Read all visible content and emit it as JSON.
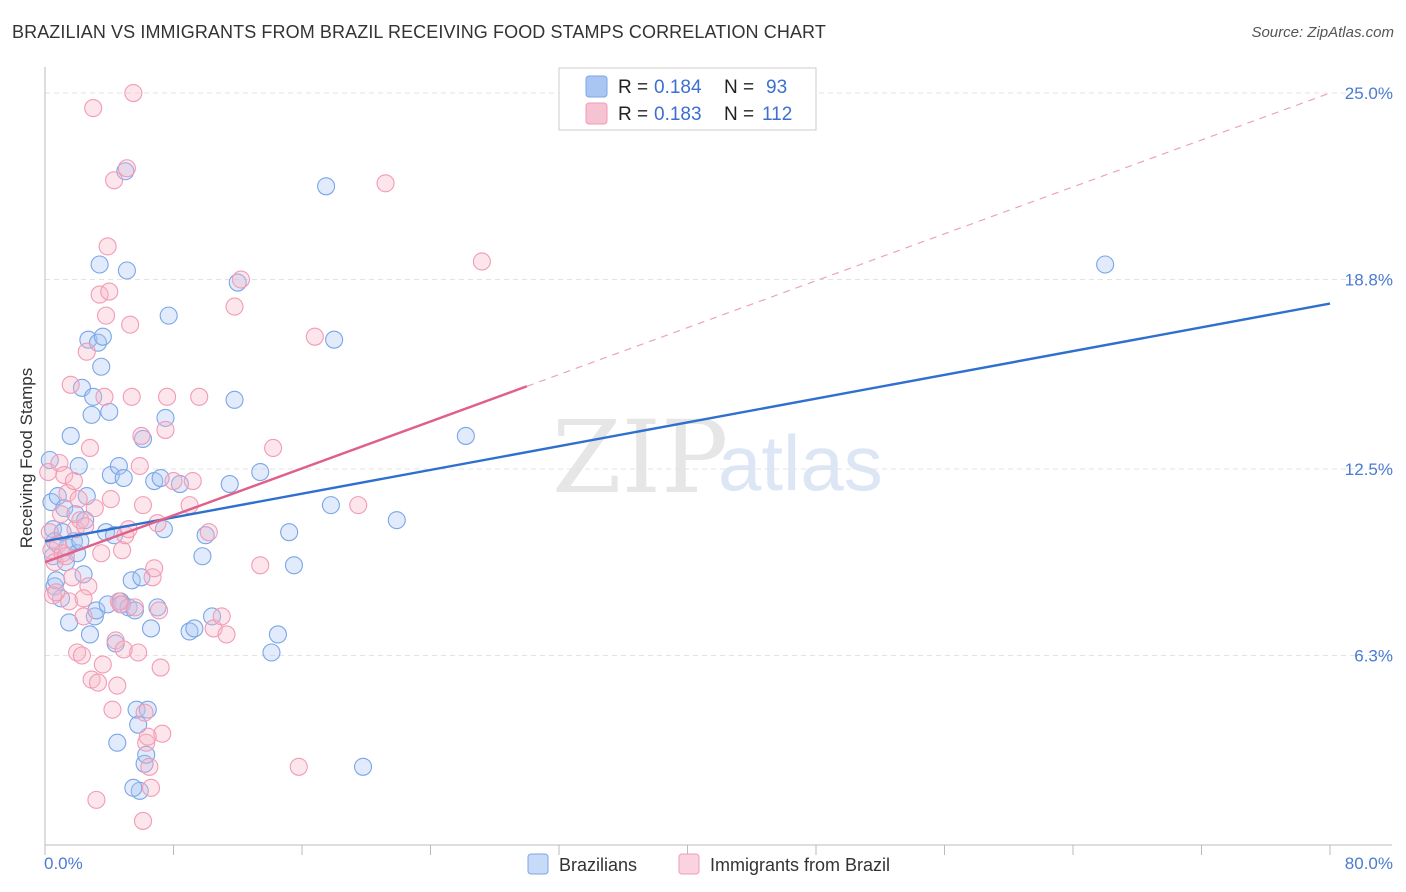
{
  "header": {
    "title": "BRAZILIAN VS IMMIGRANTS FROM BRAZIL RECEIVING FOOD STAMPS CORRELATION CHART",
    "source": "Source: ZipAtlas.com"
  },
  "watermark": {
    "part1": "ZIP",
    "part2": "atlas"
  },
  "legend": {
    "r_label": "R =",
    "n_label": "N =",
    "rows": [
      {
        "r": "0.184",
        "n": "93",
        "color": "#a9c6f3"
      },
      {
        "r": "0.183",
        "n": "112",
        "color": "#f6b6c9"
      }
    ]
  },
  "bottom_legend": [
    {
      "label": "Brazilians",
      "color": "#a9c6f3"
    },
    {
      "label": "Immigrants from Brazil",
      "color": "#f6b6c9"
    }
  ],
  "chart_data": {
    "type": "scatter",
    "title": "BRAZILIAN VS IMMIGRANTS FROM BRAZIL RECEIVING FOOD STAMPS CORRELATION CHART",
    "xlabel": "",
    "ylabel": "Receiving Food Stamps",
    "xlim": [
      0,
      80
    ],
    "ylim": [
      0,
      25.6
    ],
    "x_tick_labels": [
      "0.0%",
      "80.0%"
    ],
    "y_ticks": [
      6.3,
      12.5,
      18.8,
      25.0
    ],
    "y_tick_labels": [
      "6.3%",
      "12.5%",
      "18.8%",
      "25.0%"
    ],
    "grid": true,
    "legend_position": "top-center",
    "series": [
      {
        "name": "Brazilians",
        "color": "#7aa6e8",
        "line_color": "#2f6fcf",
        "trend": {
          "x": [
            0,
            80
          ],
          "y": [
            10.1,
            18.0
          ],
          "dashed_from": null
        },
        "points": [
          [
            0.3,
            12.8
          ],
          [
            0.4,
            11.4
          ],
          [
            0.5,
            10.5
          ],
          [
            0.5,
            9.6
          ],
          [
            0.6,
            8.6
          ],
          [
            0.6,
            10.1
          ],
          [
            0.7,
            8.8
          ],
          [
            0.8,
            11.6
          ],
          [
            1.0,
            8.2
          ],
          [
            1.1,
            10.4
          ],
          [
            1.2,
            11.2
          ],
          [
            1.3,
            9.4
          ],
          [
            1.4,
            9.9
          ],
          [
            1.5,
            7.4
          ],
          [
            1.6,
            13.6
          ],
          [
            1.8,
            10.1
          ],
          [
            1.9,
            11.0
          ],
          [
            2.0,
            9.7
          ],
          [
            2.1,
            12.6
          ],
          [
            2.2,
            10.1
          ],
          [
            2.3,
            15.2
          ],
          [
            2.4,
            9.0
          ],
          [
            2.5,
            10.8
          ],
          [
            2.6,
            11.6
          ],
          [
            2.7,
            16.8
          ],
          [
            2.8,
            7.0
          ],
          [
            2.9,
            14.3
          ],
          [
            3.0,
            14.9
          ],
          [
            3.1,
            7.6
          ],
          [
            3.2,
            7.8
          ],
          [
            3.3,
            16.7
          ],
          [
            3.4,
            19.3
          ],
          [
            3.5,
            15.9
          ],
          [
            3.6,
            16.9
          ],
          [
            3.8,
            10.4
          ],
          [
            3.9,
            8.0
          ],
          [
            4.0,
            14.4
          ],
          [
            4.1,
            12.3
          ],
          [
            4.3,
            10.3
          ],
          [
            4.4,
            6.7
          ],
          [
            4.5,
            3.4
          ],
          [
            4.6,
            12.6
          ],
          [
            4.7,
            8.1
          ],
          [
            4.8,
            8.0
          ],
          [
            4.9,
            12.2
          ],
          [
            5.0,
            22.4
          ],
          [
            5.1,
            19.1
          ],
          [
            5.2,
            7.9
          ],
          [
            5.4,
            8.8
          ],
          [
            5.6,
            7.8
          ],
          [
            5.7,
            4.5
          ],
          [
            5.8,
            4.0
          ],
          [
            5.9,
            1.8
          ],
          [
            6.0,
            8.9
          ],
          [
            6.1,
            13.5
          ],
          [
            6.2,
            2.7
          ],
          [
            6.3,
            3.0
          ],
          [
            6.4,
            4.5
          ],
          [
            6.6,
            7.2
          ],
          [
            6.8,
            12.1
          ],
          [
            7.0,
            7.9
          ],
          [
            7.2,
            12.2
          ],
          [
            7.4,
            10.5
          ],
          [
            7.5,
            14.2
          ],
          [
            7.7,
            17.6
          ],
          [
            8.4,
            12.0
          ],
          [
            9.0,
            7.1
          ],
          [
            9.3,
            7.2
          ],
          [
            9.8,
            9.6
          ],
          [
            10.0,
            10.3
          ],
          [
            10.4,
            7.6
          ],
          [
            11.5,
            12.0
          ],
          [
            11.8,
            14.8
          ],
          [
            12.0,
            18.7
          ],
          [
            13.4,
            12.4
          ],
          [
            14.1,
            6.4
          ],
          [
            14.5,
            7.0
          ],
          [
            15.2,
            10.4
          ],
          [
            15.5,
            9.3
          ],
          [
            17.5,
            21.9
          ],
          [
            17.8,
            11.3
          ],
          [
            18.0,
            16.8
          ],
          [
            19.8,
            2.6
          ],
          [
            21.9,
            10.8
          ],
          [
            26.2,
            13.6
          ],
          [
            66.0,
            19.3
          ],
          [
            5.5,
            1.9
          ]
        ]
      },
      {
        "name": "Immigrants from Brazil",
        "color": "#f29bb5",
        "line_color": "#e0608a",
        "trend": {
          "x": [
            0,
            80
          ],
          "y": [
            9.4,
            25.0
          ],
          "solid_until": 30
        },
        "points": [
          [
            0.2,
            12.4
          ],
          [
            0.3,
            10.4
          ],
          [
            0.4,
            9.8
          ],
          [
            0.5,
            8.3
          ],
          [
            0.6,
            9.4
          ],
          [
            0.7,
            8.4
          ],
          [
            0.8,
            10.0
          ],
          [
            0.9,
            12.7
          ],
          [
            1.0,
            11.0
          ],
          [
            1.1,
            9.7
          ],
          [
            1.2,
            12.3
          ],
          [
            1.3,
            9.6
          ],
          [
            1.4,
            11.7
          ],
          [
            1.5,
            8.1
          ],
          [
            1.6,
            15.3
          ],
          [
            1.7,
            8.9
          ],
          [
            1.8,
            12.1
          ],
          [
            1.9,
            10.5
          ],
          [
            2.0,
            6.4
          ],
          [
            2.1,
            11.5
          ],
          [
            2.2,
            10.8
          ],
          [
            2.3,
            6.3
          ],
          [
            2.4,
            7.6
          ],
          [
            2.5,
            10.6
          ],
          [
            2.6,
            16.4
          ],
          [
            2.7,
            8.6
          ],
          [
            2.8,
            13.2
          ],
          [
            2.9,
            5.5
          ],
          [
            3.0,
            24.5
          ],
          [
            3.1,
            11.2
          ],
          [
            3.2,
            1.5
          ],
          [
            3.3,
            5.4
          ],
          [
            3.4,
            18.3
          ],
          [
            3.5,
            9.7
          ],
          [
            3.6,
            6.0
          ],
          [
            3.7,
            14.9
          ],
          [
            3.8,
            17.6
          ],
          [
            3.9,
            19.9
          ],
          [
            4.0,
            18.4
          ],
          [
            4.1,
            11.5
          ],
          [
            4.2,
            4.5
          ],
          [
            4.3,
            22.1
          ],
          [
            4.4,
            6.8
          ],
          [
            4.5,
            5.3
          ],
          [
            4.6,
            8.1
          ],
          [
            4.7,
            8.0
          ],
          [
            4.8,
            9.8
          ],
          [
            4.9,
            6.5
          ],
          [
            5.0,
            10.3
          ],
          [
            5.1,
            22.5
          ],
          [
            5.2,
            10.5
          ],
          [
            5.3,
            17.3
          ],
          [
            5.4,
            14.9
          ],
          [
            5.5,
            25.0
          ],
          [
            5.6,
            7.9
          ],
          [
            5.8,
            6.4
          ],
          [
            5.9,
            12.6
          ],
          [
            6.0,
            13.6
          ],
          [
            6.1,
            11.3
          ],
          [
            6.2,
            4.4
          ],
          [
            6.3,
            3.4
          ],
          [
            6.4,
            3.6
          ],
          [
            6.5,
            2.6
          ],
          [
            6.6,
            1.9
          ],
          [
            6.7,
            8.9
          ],
          [
            6.8,
            9.2
          ],
          [
            7.0,
            10.7
          ],
          [
            7.1,
            7.8
          ],
          [
            7.2,
            5.9
          ],
          [
            7.3,
            3.7
          ],
          [
            7.5,
            13.8
          ],
          [
            7.6,
            14.9
          ],
          [
            8.0,
            12.1
          ],
          [
            9.2,
            12.1
          ],
          [
            9.6,
            14.9
          ],
          [
            10.2,
            10.4
          ],
          [
            10.5,
            7.2
          ],
          [
            11.0,
            7.6
          ],
          [
            11.3,
            7.0
          ],
          [
            11.8,
            17.9
          ],
          [
            12.2,
            18.8
          ],
          [
            13.4,
            9.3
          ],
          [
            14.2,
            13.2
          ],
          [
            15.8,
            2.6
          ],
          [
            16.8,
            16.9
          ],
          [
            19.5,
            11.3
          ],
          [
            21.2,
            22.0
          ],
          [
            27.2,
            19.4
          ],
          [
            9.0,
            11.3
          ],
          [
            2.4,
            8.2
          ],
          [
            6.1,
            0.8
          ]
        ]
      }
    ]
  }
}
